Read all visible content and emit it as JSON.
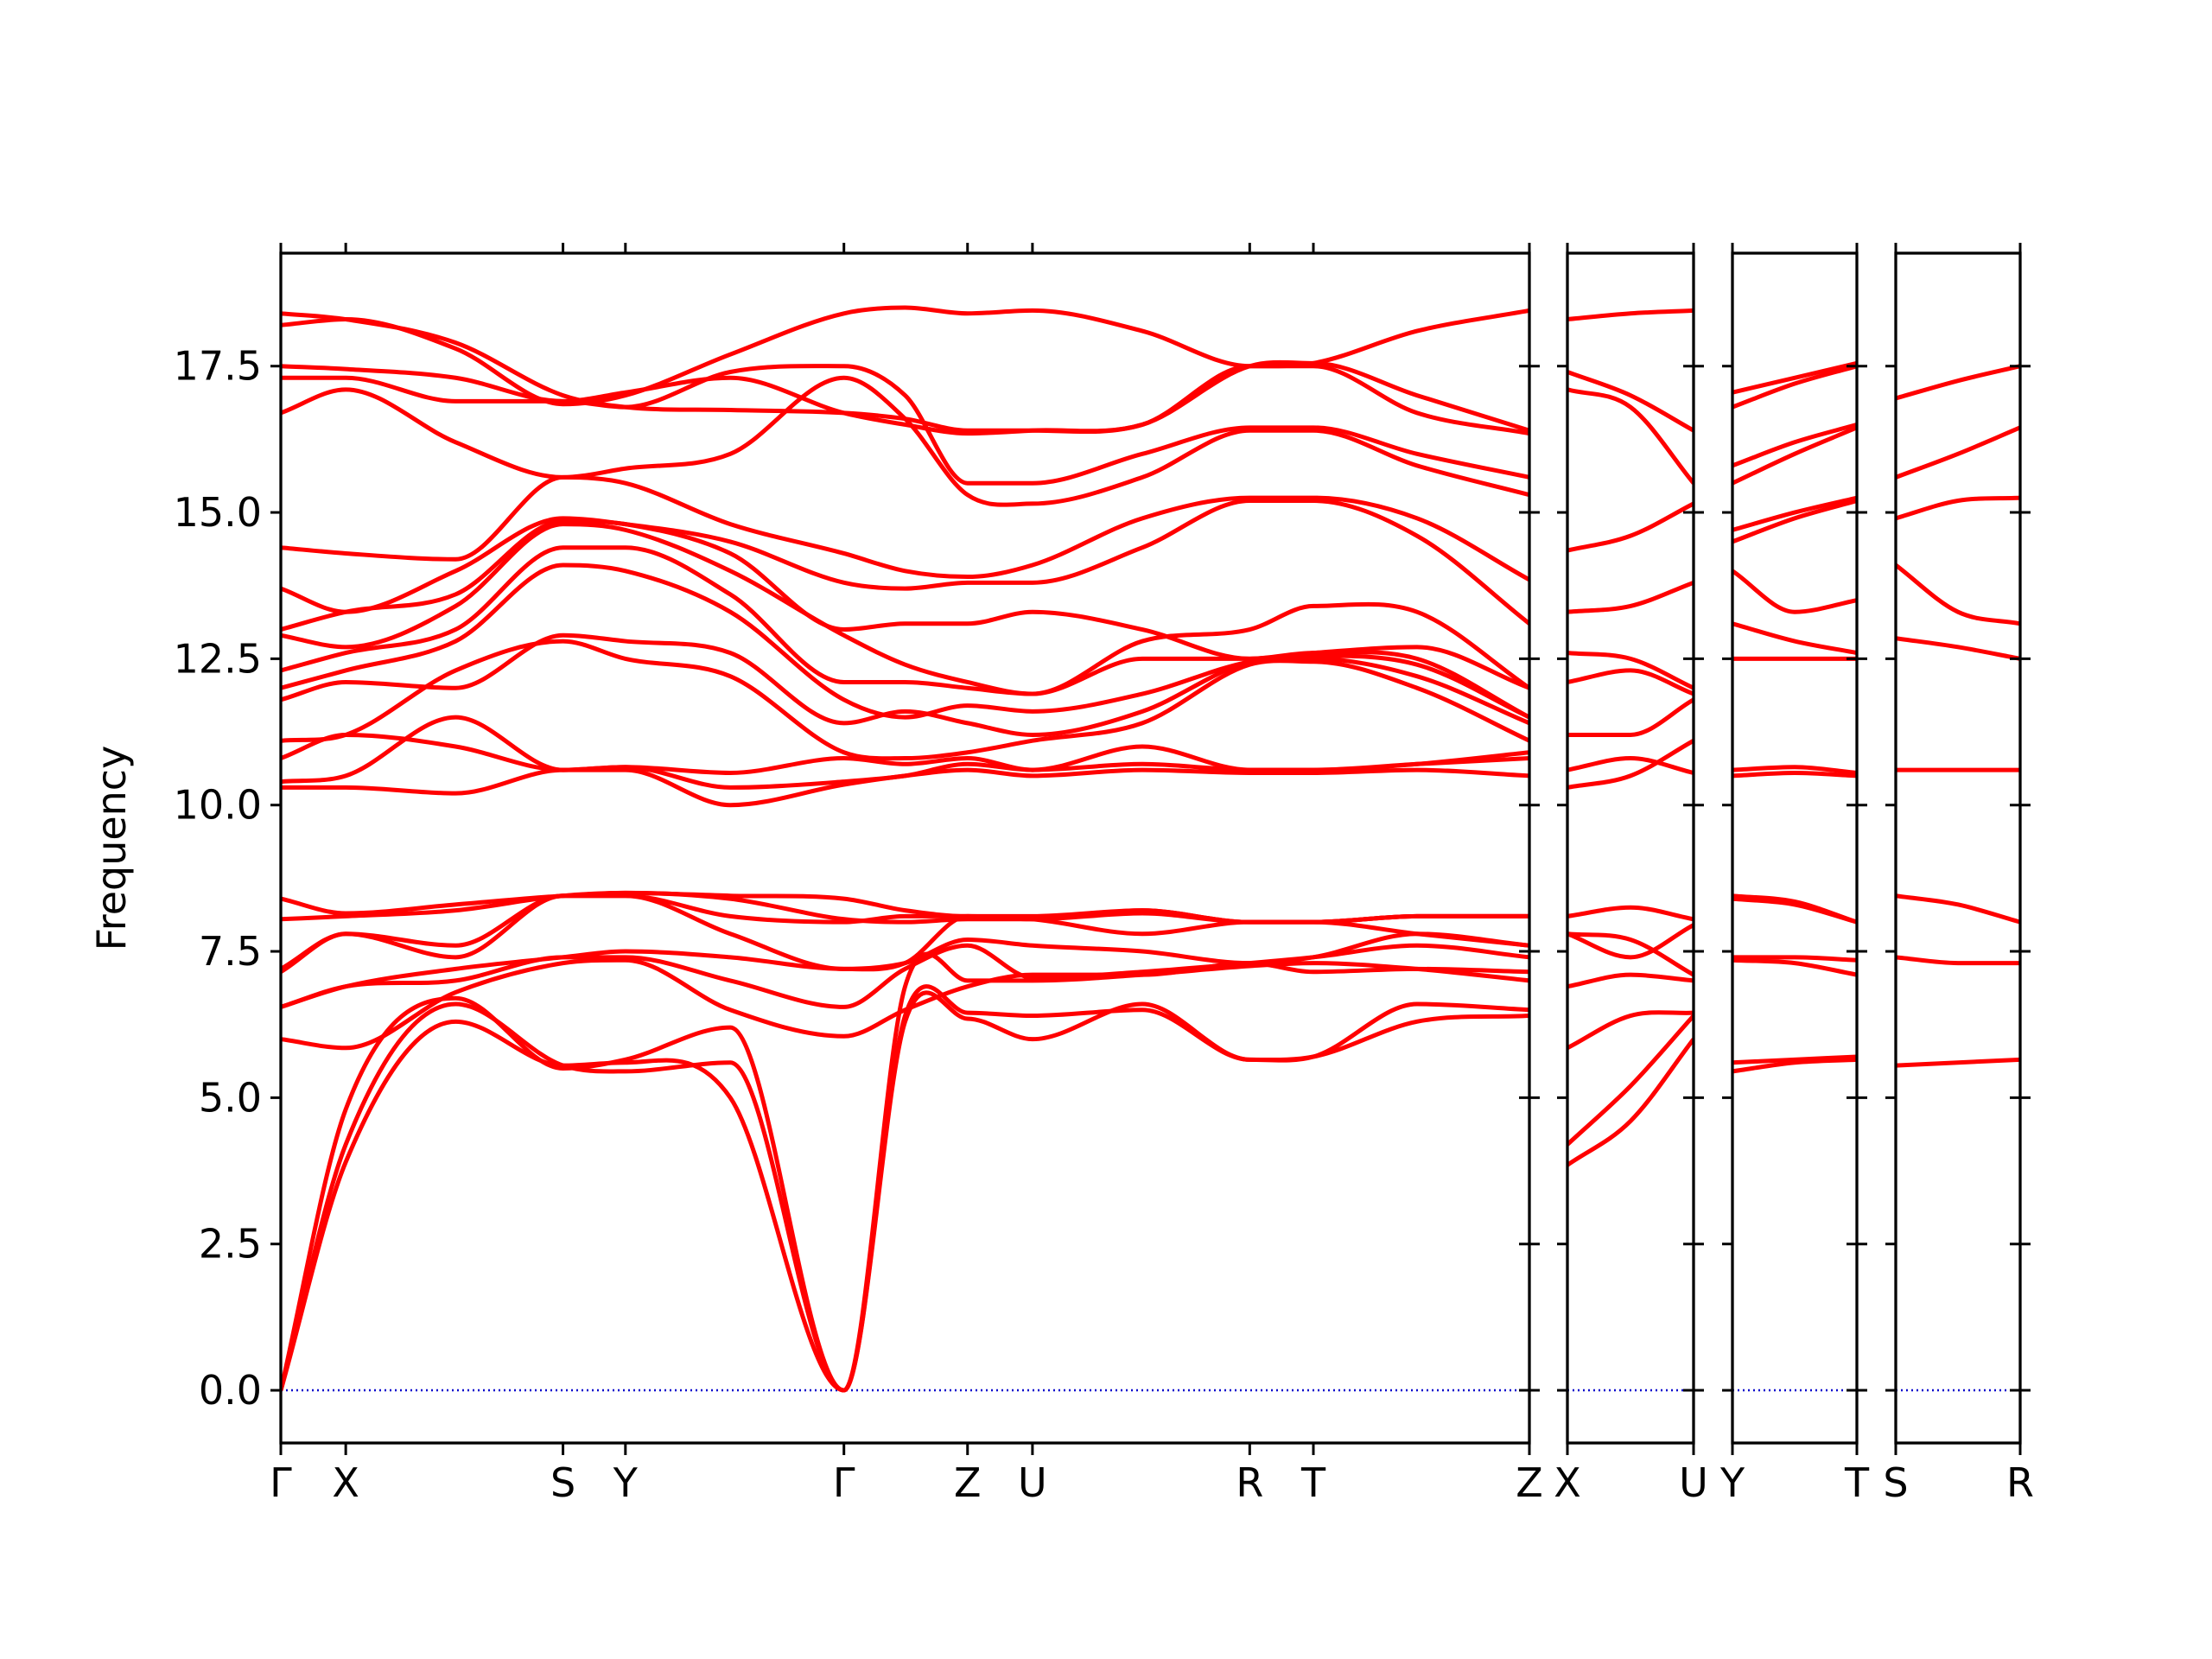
{
  "chart_data": [
    {
      "type": "line",
      "y_label": "Frequency",
      "color": "#ff0000",
      "x": [
        0,
        0.052,
        0.14,
        0.226,
        0.276,
        0.36,
        0.451,
        0.5,
        0.55,
        0.602,
        0.69,
        0.776,
        0.827,
        0.91,
        1.0
      ],
      "xlim": [
        0,
        1
      ],
      "xticks": [
        {
          "value": 0,
          "label": "Γ"
        },
        {
          "value": 0.052,
          "label": "X"
        },
        {
          "value": 0.226,
          "label": "S"
        },
        {
          "value": 0.276,
          "label": "Y"
        },
        {
          "value": 0.451,
          "label": "Γ"
        },
        {
          "value": 0.55,
          "label": "Z"
        },
        {
          "value": 0.602,
          "label": "U"
        },
        {
          "value": 0.776,
          "label": "R"
        },
        {
          "value": 0.827,
          "label": "T"
        },
        {
          "value": 1.0,
          "label": "Z"
        }
      ],
      "ylim": [
        -0.9,
        19.43
      ],
      "yticks": [
        {
          "value": 0,
          "label": "0.0"
        },
        {
          "value": 2.5,
          "label": "2.5"
        },
        {
          "value": 5,
          "label": "5.0"
        },
        {
          "value": 7.5,
          "label": "7.5"
        },
        {
          "value": 10,
          "label": "10.0"
        },
        {
          "value": 12.5,
          "label": "12.5"
        },
        {
          "value": 15,
          "label": "15.0"
        },
        {
          "value": 17.5,
          "label": "17.5"
        }
      ],
      "series": [
        {
          "values": [
            0,
            3.9,
            6.3,
            5.55,
            5.6,
            5.0,
            0,
            6.3,
            6.35,
            6.0,
            6.6,
            5.65,
            5.7,
            6.3,
            6.4
          ]
        },
        {
          "values": [
            0,
            4.2,
            6.6,
            5.55,
            5.45,
            5.6,
            0,
            6.4,
            6.45,
            6.4,
            6.5,
            5.65,
            5.7,
            6.6,
            6.5
          ]
        },
        {
          "values": [
            0,
            4.8,
            6.7,
            5.5,
            5.65,
            6.2,
            0,
            6.9,
            7.0,
            7.0,
            7.1,
            7.25,
            7.3,
            7.2,
            7.0
          ]
        },
        {
          "values": [
            6.0,
            5.85,
            6.8,
            7.3,
            7.35,
            6.5,
            6.05,
            6.5,
            6.9,
            7.1,
            7.1,
            7.3,
            7.15,
            7.2,
            7.15
          ]
        },
        {
          "values": [
            6.55,
            6.9,
            7.0,
            7.4,
            7.4,
            7.0,
            6.55,
            7.2,
            7.6,
            7.05,
            7.15,
            7.3,
            7.4,
            7.6,
            7.4
          ]
        },
        {
          "values": [
            6.55,
            6.9,
            7.2,
            7.4,
            7.5,
            7.4,
            7.2,
            7.3,
            7.7,
            7.6,
            7.5,
            7.3,
            7.4,
            7.8,
            7.6
          ]
        },
        {
          "values": [
            7.15,
            7.8,
            7.4,
            8.45,
            8.45,
            7.8,
            7.2,
            7.3,
            8.1,
            8.05,
            7.8,
            8.0,
            8.0,
            7.8,
            7.6
          ]
        },
        {
          "values": [
            7.2,
            7.8,
            7.6,
            8.45,
            8.45,
            8.1,
            8.0,
            8.1,
            8.1,
            8.05,
            8.15,
            8.0,
            8.0,
            8.1,
            8.1
          ]
        },
        {
          "values": [
            8.05,
            8.1,
            8.2,
            8.45,
            8.5,
            8.4,
            8.05,
            8.0,
            8.05,
            8.05,
            8.2,
            8.0,
            8.0,
            8.1,
            8.1
          ]
        },
        {
          "values": [
            8.4,
            8.15,
            8.3,
            8.45,
            8.5,
            8.45,
            8.4,
            8.2,
            8.1,
            8.1,
            8.2,
            8.0,
            8.0,
            8.1,
            8.1
          ]
        },
        {
          "values": [
            10.3,
            10.3,
            10.2,
            10.6,
            10.6,
            10.0,
            10.35,
            10.5,
            10.6,
            10.5,
            10.6,
            10.55,
            10.55,
            10.6,
            10.5
          ]
        },
        {
          "values": [
            10.4,
            10.5,
            11.5,
            10.6,
            10.65,
            10.3,
            10.4,
            10.5,
            10.7,
            10.6,
            10.7,
            10.6,
            10.6,
            10.7,
            10.8
          ]
        },
        {
          "values": [
            10.8,
            11.2,
            11.0,
            10.6,
            10.65,
            10.55,
            10.8,
            10.7,
            10.8,
            10.6,
            11.0,
            10.6,
            10.6,
            10.7,
            10.9
          ]
        },
        {
          "values": [
            11.1,
            11.2,
            12.3,
            12.8,
            12.5,
            12.2,
            10.9,
            10.8,
            10.9,
            11.1,
            11.4,
            12.4,
            12.45,
            12.0,
            11.1
          ]
        },
        {
          "values": [
            11.8,
            12.1,
            12.0,
            12.9,
            12.8,
            12.6,
            11.4,
            11.6,
            11.4,
            11.2,
            11.6,
            12.45,
            12.5,
            12.2,
            11.4
          ]
        },
        {
          "values": [
            12.0,
            12.3,
            12.8,
            14.1,
            14.0,
            13.3,
            11.8,
            11.5,
            11.7,
            11.6,
            11.9,
            12.45,
            12.55,
            12.4,
            11.5
          ]
        },
        {
          "values": [
            12.3,
            12.6,
            13.0,
            14.4,
            14.4,
            13.6,
            12.1,
            12.1,
            12.0,
            11.9,
            12.5,
            12.5,
            12.6,
            12.5,
            11.5
          ]
        },
        {
          "values": [
            12.9,
            12.7,
            13.4,
            14.8,
            14.7,
            14.0,
            12.9,
            12.4,
            12.1,
            11.9,
            12.8,
            13.0,
            13.4,
            13.3,
            12.0
          ]
        },
        {
          "values": [
            13.0,
            13.3,
            13.6,
            14.85,
            14.8,
            14.3,
            13.0,
            13.1,
            13.1,
            13.3,
            13.0,
            12.5,
            12.6,
            12.7,
            12.0
          ]
        },
        {
          "values": [
            13.7,
            13.3,
            14.0,
            14.9,
            14.8,
            14.5,
            13.8,
            13.7,
            13.8,
            13.8,
            14.4,
            15.2,
            15.2,
            14.6,
            13.1
          ]
        },
        {
          "values": [
            14.4,
            14.3,
            14.2,
            15.6,
            15.5,
            14.8,
            14.3,
            14.0,
            13.9,
            14.1,
            14.9,
            15.25,
            15.25,
            14.9,
            13.85
          ]
        },
        {
          "values": [
            16.7,
            17.1,
            16.2,
            15.6,
            15.75,
            16.0,
            17.3,
            16.6,
            15.3,
            15.15,
            15.6,
            16.4,
            16.4,
            15.8,
            15.3
          ]
        },
        {
          "values": [
            17.3,
            17.3,
            16.9,
            16.9,
            16.8,
            17.4,
            17.5,
            17.0,
            15.5,
            15.5,
            16.0,
            16.45,
            16.45,
            16.0,
            15.6
          ]
        },
        {
          "values": [
            17.5,
            17.45,
            17.3,
            16.9,
            17.05,
            17.3,
            16.7,
            16.5,
            16.35,
            16.4,
            16.5,
            17.5,
            17.5,
            16.7,
            16.35
          ]
        },
        {
          "values": [
            18.2,
            18.3,
            17.8,
            16.85,
            17.0,
            17.7,
            18.4,
            18.5,
            18.4,
            18.45,
            18.1,
            17.5,
            17.55,
            18.1,
            18.45
          ]
        },
        {
          "values": [
            18.4,
            18.3,
            17.9,
            17.0,
            16.8,
            16.75,
            16.7,
            16.6,
            16.4,
            16.4,
            16.5,
            17.5,
            17.55,
            17.0,
            16.4
          ]
        }
      ]
    },
    {
      "type": "line",
      "color": "#ff0000",
      "x": [
        0,
        0.5,
        1
      ],
      "xlim": [
        0,
        1
      ],
      "xticks": [
        {
          "value": 0,
          "label": "X"
        },
        {
          "value": 1,
          "label": "U"
        }
      ],
      "ylim": [
        -0.9,
        19.43
      ],
      "yticks": [
        0,
        2.5,
        5,
        7.5,
        10,
        12.5,
        15,
        17.5
      ],
      "series": [
        {
          "values": [
            3.85,
            4.6,
            6.0
          ]
        },
        {
          "values": [
            4.2,
            5.2,
            6.4
          ]
        },
        {
          "values": [
            5.85,
            6.4,
            6.45
          ]
        },
        {
          "values": [
            6.9,
            7.1,
            7.0
          ]
        },
        {
          "values": [
            7.8,
            7.7,
            7.1
          ]
        },
        {
          "values": [
            7.8,
            7.4,
            7.95
          ]
        },
        {
          "values": [
            8.1,
            8.25,
            8.05
          ]
        },
        {
          "values": [
            10.3,
            10.5,
            11.1
          ]
        },
        {
          "values": [
            10.6,
            10.8,
            10.55
          ]
        },
        {
          "values": [
            11.2,
            11.2,
            11.8
          ]
        },
        {
          "values": [
            12.1,
            12.3,
            11.9
          ]
        },
        {
          "values": [
            12.6,
            12.5,
            12.0
          ]
        },
        {
          "values": [
            13.3,
            13.4,
            13.8
          ]
        },
        {
          "values": [
            14.35,
            14.6,
            15.15
          ]
        },
        {
          "values": [
            17.1,
            16.8,
            15.5
          ]
        },
        {
          "values": [
            17.4,
            17.0,
            16.4
          ]
        },
        {
          "values": [
            18.3,
            18.4,
            18.45
          ]
        }
      ]
    },
    {
      "type": "line",
      "color": "#ff0000",
      "x": [
        0,
        0.5,
        1
      ],
      "xlim": [
        0,
        1
      ],
      "xticks": [
        {
          "value": 0,
          "label": "Y"
        },
        {
          "value": 1,
          "label": "T"
        }
      ],
      "ylim": [
        -0.9,
        19.43
      ],
      "yticks": [
        0,
        2.5,
        5,
        7.5,
        10,
        12.5,
        15,
        17.5
      ],
      "series": [
        {
          "values": [
            5.45,
            5.6,
            5.65
          ]
        },
        {
          "values": [
            5.6,
            5.65,
            5.7
          ]
        },
        {
          "values": [
            7.35,
            7.3,
            7.1
          ]
        },
        {
          "values": [
            7.4,
            7.4,
            7.35
          ]
        },
        {
          "values": [
            8.4,
            8.3,
            8.0
          ]
        },
        {
          "values": [
            8.45,
            8.35,
            8.0
          ]
        },
        {
          "values": [
            10.5,
            10.55,
            10.5
          ]
        },
        {
          "values": [
            10.6,
            10.65,
            10.55
          ]
        },
        {
          "values": [
            12.5,
            12.5,
            12.5
          ]
        },
        {
          "values": [
            13.1,
            12.8,
            12.6
          ]
        },
        {
          "values": [
            14.0,
            13.3,
            13.5
          ]
        },
        {
          "values": [
            14.5,
            14.9,
            15.2
          ]
        },
        {
          "values": [
            14.7,
            15.0,
            15.25
          ]
        },
        {
          "values": [
            15.5,
            16.0,
            16.45
          ]
        },
        {
          "values": [
            15.8,
            16.2,
            16.5
          ]
        },
        {
          "values": [
            16.8,
            17.2,
            17.5
          ]
        },
        {
          "values": [
            17.05,
            17.3,
            17.55
          ]
        }
      ]
    },
    {
      "type": "line",
      "color": "#ff0000",
      "x": [
        0,
        0.5,
        1
      ],
      "xlim": [
        0,
        1
      ],
      "xticks": [
        {
          "value": 0,
          "label": "S"
        },
        {
          "value": 1,
          "label": "R"
        }
      ],
      "ylim": [
        -0.9,
        19.43
      ],
      "yticks": [
        0,
        2.5,
        5,
        7.5,
        10,
        12.5,
        15,
        17.5
      ],
      "series": [
        {
          "values": [
            5.55,
            5.6,
            5.65
          ]
        },
        {
          "values": [
            7.4,
            7.3,
            7.3
          ]
        },
        {
          "values": [
            8.45,
            8.3,
            8.0
          ]
        },
        {
          "values": [
            10.6,
            10.6,
            10.6
          ]
        },
        {
          "values": [
            12.85,
            12.7,
            12.5
          ]
        },
        {
          "values": [
            14.1,
            13.3,
            13.1
          ]
        },
        {
          "values": [
            14.9,
            15.2,
            15.25
          ]
        },
        {
          "values": [
            15.6,
            16.0,
            16.45
          ]
        },
        {
          "values": [
            16.95,
            17.25,
            17.5
          ]
        }
      ]
    }
  ]
}
